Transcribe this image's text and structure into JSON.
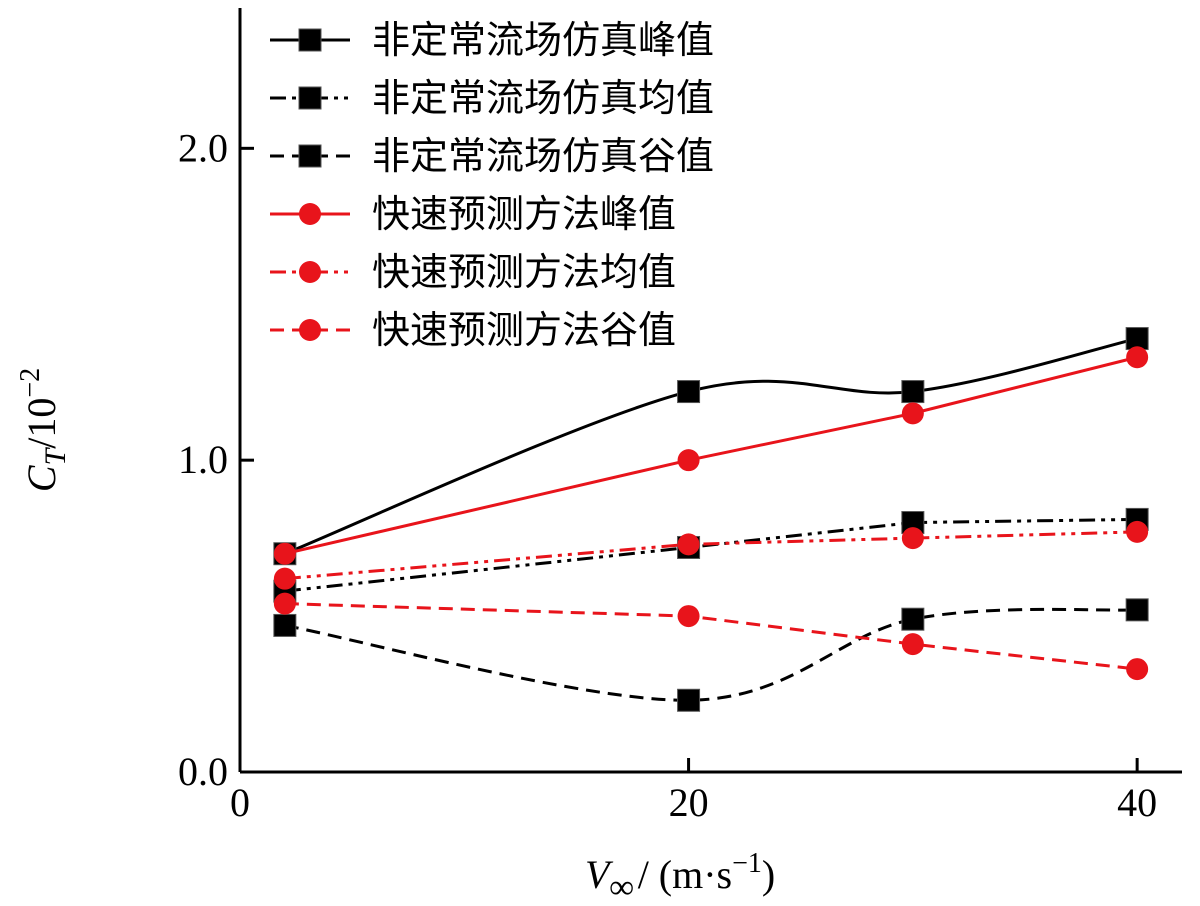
{
  "chart_data": {
    "type": "line",
    "title": "",
    "xlabel": {
      "main": "V",
      "sub": "∞",
      "unit": "/ (m·s",
      "sup": "−1",
      "close": ")"
    },
    "ylabel": {
      "main": "C",
      "sub": "T",
      "unit": "/10",
      "sup": "−2"
    },
    "xlim": [
      0,
      42
    ],
    "ylim": [
      0,
      2.45
    ],
    "xticks": [
      0,
      20,
      40
    ],
    "xtick_labels": [
      "0",
      "20",
      "40"
    ],
    "yticks": [
      0.0,
      1.0,
      2.0
    ],
    "ytick_labels": [
      "0.0",
      "1.0",
      "2.0"
    ],
    "grid": false,
    "legend_position": "top",
    "series": [
      {
        "name": "非定常流场仿真峰值",
        "x": [
          2,
          20,
          30,
          40
        ],
        "y": [
          0.7,
          1.22,
          1.22,
          1.39
        ],
        "color": "#000000",
        "dash": "solid",
        "marker": "square",
        "smooth": true
      },
      {
        "name": "非定常流场仿真均值",
        "x": [
          2,
          20,
          30,
          40
        ],
        "y": [
          0.58,
          0.72,
          0.8,
          0.81
        ],
        "color": "#000000",
        "dash": "dashdotdot",
        "marker": "square",
        "smooth": false
      },
      {
        "name": "非定常流场仿真谷值",
        "x": [
          2,
          20,
          30,
          40
        ],
        "y": [
          0.47,
          0.23,
          0.49,
          0.52
        ],
        "color": "#000000",
        "dash": "dashed",
        "marker": "square",
        "smooth": true
      },
      {
        "name": "快速预测方法峰值",
        "x": [
          2,
          20,
          30,
          40
        ],
        "y": [
          0.7,
          1.0,
          1.15,
          1.33
        ],
        "color": "#e8141b",
        "dash": "solid",
        "marker": "circle",
        "smooth": false
      },
      {
        "name": "快速预测方法均值",
        "x": [
          2,
          20,
          30,
          40
        ],
        "y": [
          0.62,
          0.73,
          0.75,
          0.77
        ],
        "color": "#e8141b",
        "dash": "dashdotdot",
        "marker": "circle",
        "smooth": false
      },
      {
        "name": "快速预测方法谷值",
        "x": [
          2,
          20,
          30,
          40
        ],
        "y": [
          0.54,
          0.5,
          0.41,
          0.33
        ],
        "color": "#e8141b",
        "dash": "dashed",
        "marker": "circle",
        "smooth": false
      }
    ]
  }
}
